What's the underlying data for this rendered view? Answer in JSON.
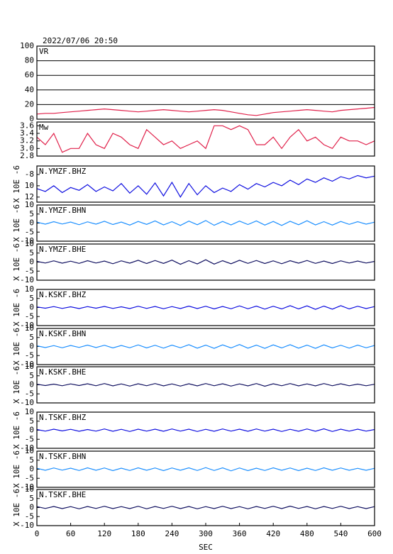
{
  "chart_data": [
    {
      "type": "line",
      "title": "2022/07/06 20:50",
      "xlim": [
        0,
        600
      ],
      "ylim": [
        0,
        100
      ],
      "yticks": [
        0,
        20,
        40,
        60,
        80,
        100
      ],
      "grid": true,
      "x": [
        0,
        15,
        30,
        45,
        60,
        75,
        90,
        105,
        120,
        135,
        150,
        165,
        180,
        195,
        210,
        225,
        240,
        255,
        270,
        285,
        300,
        315,
        330,
        345,
        360,
        375,
        390,
        405,
        420,
        435,
        450,
        465,
        480,
        495,
        510,
        525,
        540,
        555,
        570,
        585,
        600
      ],
      "series": [
        {
          "name": "VR",
          "color": "#e0204a",
          "values": [
            7,
            8,
            8,
            9,
            10,
            11,
            12,
            13,
            14,
            13,
            12,
            11,
            10,
            11,
            12,
            13,
            12,
            11,
            10,
            11,
            12,
            13,
            12,
            10,
            8,
            6,
            5,
            7,
            9,
            10,
            11,
            12,
            13,
            12,
            11,
            10,
            12,
            13,
            14,
            15,
            16
          ]
        }
      ]
    },
    {
      "type": "line",
      "xlim": [
        0,
        600
      ],
      "ylim": [
        2.8,
        3.7
      ],
      "yticks": [
        {
          "value": 2.8,
          "label": "2.8"
        },
        {
          "value": 3.0,
          "label": "3.0"
        },
        {
          "value": 3.2,
          "label": "3.2"
        },
        {
          "value": 3.4,
          "label": "3.4"
        },
        {
          "value": 3.6,
          "label": "3.6"
        }
      ],
      "x": [
        0,
        15,
        30,
        45,
        60,
        75,
        90,
        105,
        120,
        135,
        150,
        165,
        180,
        195,
        210,
        225,
        240,
        255,
        270,
        285,
        300,
        315,
        330,
        345,
        360,
        375,
        390,
        405,
        420,
        435,
        450,
        465,
        480,
        495,
        510,
        525,
        540,
        555,
        570,
        585,
        600
      ],
      "series": [
        {
          "name": "Mw",
          "color": "#e0204a",
          "values": [
            3.3,
            3.1,
            3.4,
            2.9,
            3.0,
            3.0,
            3.4,
            3.1,
            3.0,
            3.4,
            3.3,
            3.1,
            3.0,
            3.5,
            3.3,
            3.1,
            3.2,
            3.0,
            3.1,
            3.2,
            3.0,
            3.6,
            3.6,
            3.5,
            3.6,
            3.5,
            3.1,
            3.1,
            3.3,
            3.0,
            3.3,
            3.5,
            3.2,
            3.3,
            3.1,
            3.0,
            3.3,
            3.2,
            3.2,
            3.1,
            3.2
          ]
        }
      ]
    },
    {
      "type": "line",
      "ylabel": "X 10E -6",
      "xlim": [
        0,
        600
      ],
      "ylim": [
        -12.9,
        -6.5
      ],
      "yticks": [
        {
          "value": -12,
          "label": "12"
        },
        {
          "value": -10,
          "label": "10"
        },
        -8
      ],
      "x": [
        0,
        15,
        30,
        45,
        60,
        75,
        90,
        105,
        120,
        135,
        150,
        165,
        180,
        195,
        210,
        225,
        240,
        255,
        270,
        285,
        300,
        315,
        330,
        345,
        360,
        375,
        390,
        405,
        420,
        435,
        450,
        465,
        480,
        495,
        510,
        525,
        540,
        555,
        570,
        585,
        600
      ],
      "series": [
        {
          "name": "N.YMZF.BHZ",
          "color": "#1010e0",
          "values": [
            -10.5,
            -11,
            -10,
            -11.2,
            -10.3,
            -10.8,
            -9.8,
            -11,
            -10.2,
            -10.9,
            -9.6,
            -11.3,
            -10,
            -11.5,
            -9.5,
            -11.8,
            -9.4,
            -12,
            -9.6,
            -11.6,
            -10,
            -11.2,
            -10.4,
            -11,
            -9.8,
            -10.6,
            -9.6,
            -10.2,
            -9.4,
            -10,
            -9,
            -9.8,
            -8.8,
            -9.4,
            -8.6,
            -9.2,
            -8.4,
            -8.8,
            -8.2,
            -8.6,
            -8.3
          ]
        }
      ]
    },
    {
      "type": "line",
      "ylabel": "X 10E -6",
      "xlim": [
        0,
        600
      ],
      "ylim": [
        -10,
        10
      ],
      "yticks": [
        {
          "value": -10,
          "label": "-10"
        },
        -5,
        0,
        5,
        {
          "value": 10,
          "label": "10"
        }
      ],
      "x": [
        0,
        15,
        30,
        45,
        60,
        75,
        90,
        105,
        120,
        135,
        150,
        165,
        180,
        195,
        210,
        225,
        240,
        255,
        270,
        285,
        300,
        315,
        330,
        345,
        360,
        375,
        390,
        405,
        420,
        435,
        450,
        465,
        480,
        495,
        510,
        525,
        540,
        555,
        570,
        585,
        600
      ],
      "series": [
        {
          "name": "N.YMZF.BHN",
          "color": "#1e90ff",
          "values": [
            0.5,
            -0.6,
            0.8,
            -0.5,
            0.6,
            -0.9,
            0.7,
            -0.6,
            1.0,
            -0.8,
            0.6,
            -1.1,
            0.9,
            -0.7,
            1.2,
            -1.0,
            0.8,
            -1.3,
            1.1,
            -0.9,
            1.4,
            -1.2,
            0.9,
            -1.0,
            1.1,
            -0.8,
            1.2,
            -1.1,
            0.9,
            -1.3,
            1.0,
            -0.9,
            1.3,
            -1.0,
            0.8,
            -1.1,
            0.9,
            -0.7,
            0.8,
            -0.6,
            0.5
          ]
        }
      ]
    },
    {
      "type": "line",
      "ylabel": "X 10E -6",
      "xlim": [
        0,
        600
      ],
      "ylim": [
        -10,
        10
      ],
      "yticks": [
        {
          "value": -10,
          "label": "-10"
        },
        -5,
        0,
        5,
        {
          "value": 10,
          "label": "10"
        }
      ],
      "x": [
        0,
        15,
        30,
        45,
        60,
        75,
        90,
        105,
        120,
        135,
        150,
        165,
        180,
        195,
        210,
        225,
        240,
        255,
        270,
        285,
        300,
        315,
        330,
        345,
        360,
        375,
        390,
        405,
        420,
        435,
        450,
        465,
        480,
        495,
        510,
        525,
        540,
        555,
        570,
        585,
        600
      ],
      "series": [
        {
          "name": "N.YMZF.BHE",
          "color": "#101060",
          "values": [
            0.4,
            -0.5,
            0.7,
            -0.6,
            0.5,
            -0.7,
            0.8,
            -0.5,
            0.6,
            -0.9,
            0.7,
            -0.6,
            1.0,
            -0.8,
            0.9,
            -0.7,
            1.1,
            -1.2,
            0.8,
            -1.0,
            1.3,
            -1.1,
            0.8,
            -0.9,
            1.0,
            -0.7,
            0.9,
            -0.8,
            0.7,
            -0.9,
            0.8,
            -0.6,
            0.9,
            -0.7,
            0.6,
            -0.8,
            0.7,
            -0.5,
            0.6,
            -0.5,
            0.4
          ]
        }
      ]
    },
    {
      "type": "line",
      "ylabel": "X 10E -6",
      "xlim": [
        0,
        600
      ],
      "ylim": [
        -10,
        10
      ],
      "yticks": [
        {
          "value": -10,
          "label": "-10"
        },
        -5,
        0,
        5,
        {
          "value": 10,
          "label": "10"
        }
      ],
      "x": [
        0,
        15,
        30,
        45,
        60,
        75,
        90,
        105,
        120,
        135,
        150,
        165,
        180,
        195,
        210,
        225,
        240,
        255,
        270,
        285,
        300,
        315,
        330,
        345,
        360,
        375,
        390,
        405,
        420,
        435,
        450,
        465,
        480,
        495,
        510,
        525,
        540,
        555,
        570,
        585,
        600
      ],
      "series": [
        {
          "name": "N.KSKF.BHZ",
          "color": "#1010e0",
          "values": [
            0.3,
            -0.4,
            0.5,
            -0.5,
            0.4,
            -0.6,
            0.5,
            -0.4,
            0.6,
            -0.5,
            0.4,
            -0.6,
            0.7,
            -0.5,
            0.6,
            -0.7,
            0.5,
            -0.6,
            0.8,
            -0.6,
            0.7,
            -0.8,
            0.6,
            -0.7,
            0.9,
            -0.7,
            0.8,
            -0.9,
            0.7,
            -0.8,
            1.0,
            -0.8,
            0.9,
            -1.0,
            0.8,
            -0.9,
            1.0,
            -0.8,
            0.7,
            -0.6,
            0.5
          ]
        }
      ]
    },
    {
      "type": "line",
      "ylabel": "X 10E -6",
      "xlim": [
        0,
        600
      ],
      "ylim": [
        -10,
        10
      ],
      "yticks": [
        {
          "value": -10,
          "label": "-10"
        },
        -5,
        0,
        5,
        {
          "value": 10,
          "label": "10"
        }
      ],
      "x": [
        0,
        15,
        30,
        45,
        60,
        75,
        90,
        105,
        120,
        135,
        150,
        165,
        180,
        195,
        210,
        225,
        240,
        255,
        270,
        285,
        300,
        315,
        330,
        345,
        360,
        375,
        390,
        405,
        420,
        435,
        450,
        465,
        480,
        495,
        510,
        525,
        540,
        555,
        570,
        585,
        600
      ],
      "series": [
        {
          "name": "N.KSKF.BHN",
          "color": "#1e90ff",
          "values": [
            0.4,
            -0.6,
            0.5,
            -0.7,
            0.6,
            -0.5,
            0.8,
            -0.6,
            0.7,
            -0.8,
            0.6,
            -0.7,
            0.9,
            -0.8,
            0.7,
            -0.9,
            0.8,
            -0.7,
            1.0,
            -0.9,
            0.8,
            -1.0,
            0.9,
            -0.8,
            1.1,
            -0.9,
            0.8,
            -1.0,
            0.9,
            -0.8,
            1.0,
            -0.9,
            0.8,
            -1.0,
            0.9,
            -0.8,
            0.7,
            -0.9,
            0.8,
            -0.7,
            0.6
          ]
        }
      ]
    },
    {
      "type": "line",
      "ylabel": "X 10E -6",
      "xlim": [
        0,
        600
      ],
      "ylim": [
        -10,
        10
      ],
      "yticks": [
        {
          "value": -10,
          "label": "-10"
        },
        -5,
        0,
        5,
        {
          "value": 10,
          "label": "10"
        }
      ],
      "x": [
        0,
        15,
        30,
        45,
        60,
        75,
        90,
        105,
        120,
        135,
        150,
        165,
        180,
        195,
        210,
        225,
        240,
        255,
        270,
        285,
        300,
        315,
        330,
        345,
        360,
        375,
        390,
        405,
        420,
        435,
        450,
        465,
        480,
        495,
        510,
        525,
        540,
        555,
        570,
        585,
        600
      ],
      "series": [
        {
          "name": "N.KSKF.BHE",
          "color": "#101060",
          "values": [
            0.3,
            -0.4,
            0.4,
            -0.5,
            0.5,
            -0.4,
            0.6,
            -0.5,
            0.7,
            -0.6,
            0.5,
            -0.7,
            0.6,
            -0.5,
            0.7,
            -0.6,
            0.5,
            -0.7,
            0.6,
            -0.6,
            0.7,
            -0.5,
            0.6,
            -0.7,
            0.5,
            -0.6,
            0.7,
            -0.8,
            0.6,
            -0.5,
            0.7,
            -0.6,
            0.5,
            -0.6,
            0.7,
            -0.5,
            0.6,
            -0.5,
            0.4,
            -0.5,
            0.3
          ]
        }
      ]
    },
    {
      "type": "line",
      "ylabel": "X 10E -6",
      "xlim": [
        0,
        600
      ],
      "ylim": [
        -10,
        10
      ],
      "yticks": [
        {
          "value": -10,
          "label": "-10"
        },
        -5,
        0,
        5,
        {
          "value": 10,
          "label": "10"
        }
      ],
      "x": [
        0,
        15,
        30,
        45,
        60,
        75,
        90,
        105,
        120,
        135,
        150,
        165,
        180,
        195,
        210,
        225,
        240,
        255,
        270,
        285,
        300,
        315,
        330,
        345,
        360,
        375,
        390,
        405,
        420,
        435,
        450,
        465,
        480,
        495,
        510,
        525,
        540,
        555,
        570,
        585,
        600
      ],
      "series": [
        {
          "name": "N.TSKF.BHZ",
          "color": "#1010e0",
          "values": [
            0.4,
            -0.5,
            0.6,
            -0.4,
            0.5,
            -0.6,
            0.4,
            -0.5,
            0.7,
            -0.6,
            0.5,
            -0.7,
            0.6,
            -0.5,
            0.6,
            -0.6,
            0.7,
            -0.5,
            0.6,
            -0.7,
            0.5,
            -0.6,
            0.7,
            -0.5,
            0.6,
            -0.6,
            0.7,
            -0.5,
            0.6,
            -0.7,
            0.5,
            -0.6,
            0.7,
            -0.6,
            0.8,
            -0.7,
            0.6,
            -0.5,
            0.6,
            -0.5,
            0.4
          ]
        }
      ]
    },
    {
      "type": "line",
      "ylabel": "X 10E -6",
      "xlim": [
        0,
        600
      ],
      "ylim": [
        -10,
        10
      ],
      "yticks": [
        {
          "value": -10,
          "label": "-10"
        },
        -5,
        0,
        5,
        {
          "value": 10,
          "label": "10"
        }
      ],
      "x": [
        0,
        15,
        30,
        45,
        60,
        75,
        90,
        105,
        120,
        135,
        150,
        165,
        180,
        195,
        210,
        225,
        240,
        255,
        270,
        285,
        300,
        315,
        330,
        345,
        360,
        375,
        390,
        405,
        420,
        435,
        450,
        465,
        480,
        495,
        510,
        525,
        540,
        555,
        570,
        585,
        600
      ],
      "series": [
        {
          "name": "N.TSKF.BHN",
          "color": "#1e90ff",
          "values": [
            0.5,
            -0.6,
            0.7,
            -0.5,
            0.6,
            -0.7,
            0.8,
            -0.6,
            0.7,
            -0.8,
            0.6,
            -0.7,
            0.8,
            -0.6,
            0.7,
            -0.8,
            0.7,
            -0.6,
            0.8,
            -0.7,
            0.9,
            -0.7,
            0.8,
            -0.9,
            0.7,
            -0.8,
            0.6,
            -0.7,
            0.8,
            -0.6,
            0.7,
            -0.8,
            0.6,
            -0.7,
            0.8,
            -0.6,
            0.7,
            -0.6,
            0.5,
            -0.6,
            0.5
          ]
        }
      ]
    },
    {
      "type": "line",
      "ylabel": "X 10E -6",
      "xlim": [
        0,
        600
      ],
      "ylim": [
        -10,
        10
      ],
      "yticks": [
        {
          "value": -10,
          "label": "-10"
        },
        -5,
        0,
        5,
        {
          "value": 10,
          "label": "10"
        }
      ],
      "xlabel": "SEC",
      "xticks": [
        0,
        60,
        120,
        180,
        240,
        300,
        360,
        420,
        480,
        540,
        600
      ],
      "x": [
        0,
        15,
        30,
        45,
        60,
        75,
        90,
        105,
        120,
        135,
        150,
        165,
        180,
        195,
        210,
        225,
        240,
        255,
        270,
        285,
        300,
        315,
        330,
        345,
        360,
        375,
        390,
        405,
        420,
        435,
        450,
        465,
        480,
        495,
        510,
        525,
        540,
        555,
        570,
        585,
        600
      ],
      "series": [
        {
          "name": "N.TSKF.BHE",
          "color": "#101060",
          "values": [
            0.5,
            -0.5,
            0.6,
            -0.6,
            0.5,
            -0.7,
            0.6,
            -0.5,
            0.7,
            -0.6,
            0.5,
            -0.6,
            0.7,
            -0.7,
            0.6,
            -0.5,
            0.7,
            -0.6,
            0.6,
            -0.7,
            0.5,
            -0.6,
            0.7,
            -0.6,
            0.5,
            -0.7,
            0.6,
            -0.5,
            0.7,
            -0.6,
            0.8,
            -0.5,
            0.6,
            -0.7,
            0.6,
            -0.5,
            0.7,
            -0.6,
            0.5,
            -0.6,
            0.5
          ]
        }
      ]
    }
  ]
}
